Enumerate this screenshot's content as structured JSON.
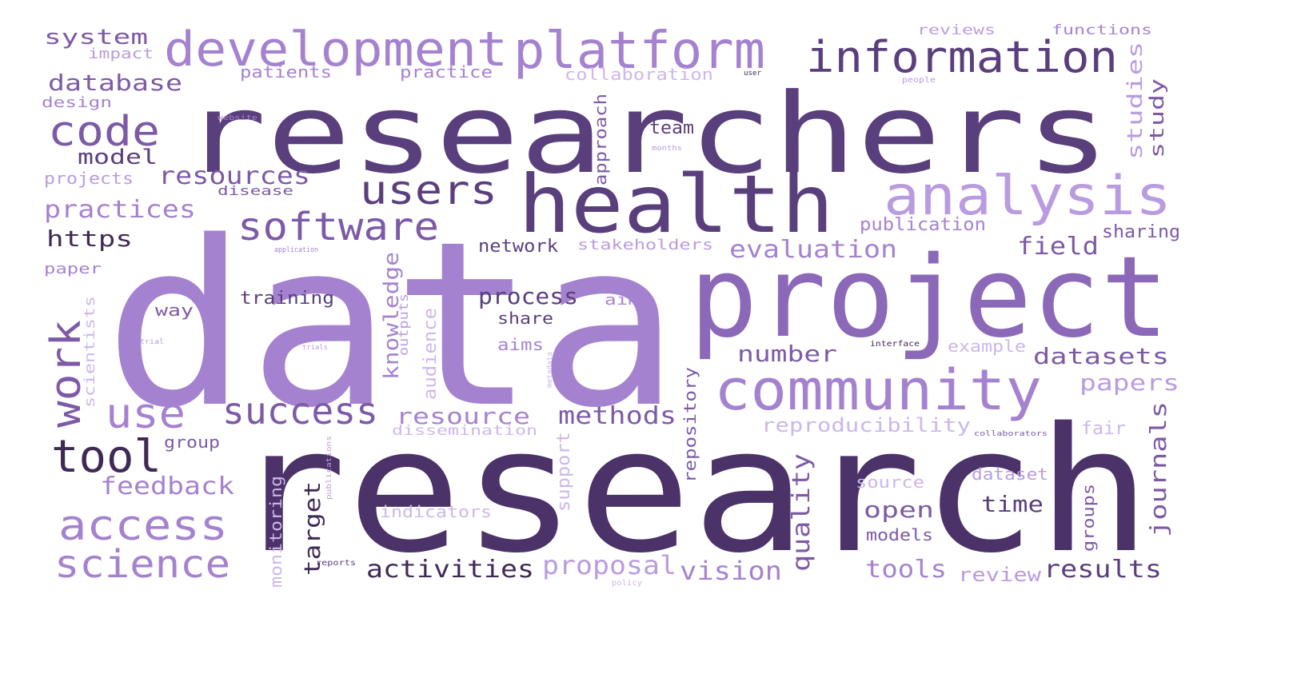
{
  "palette": {
    "darkest": "#3f2a55",
    "dark": "#5a3f7d",
    "medium": "#7c5aa6",
    "light": "#a582d0",
    "lighter": "#b99ce0",
    "lightest": "#cdb7ea"
  },
  "words": [
    {
      "text": "data"
    },
    {
      "text": "researchers"
    },
    {
      "text": "research"
    },
    {
      "text": "project"
    },
    {
      "text": "health"
    },
    {
      "text": "development"
    },
    {
      "text": "platform"
    },
    {
      "text": "information"
    },
    {
      "text": "analysis"
    },
    {
      "text": "community"
    },
    {
      "text": "code"
    },
    {
      "text": "users"
    },
    {
      "text": "software"
    },
    {
      "text": "work"
    },
    {
      "text": "use"
    },
    {
      "text": "success"
    },
    {
      "text": "tool"
    },
    {
      "text": "access"
    },
    {
      "text": "science"
    },
    {
      "text": "system"
    },
    {
      "text": "impact"
    },
    {
      "text": "database"
    },
    {
      "text": "design"
    },
    {
      "text": "model"
    },
    {
      "text": "resources"
    },
    {
      "text": "projects"
    },
    {
      "text": "disease"
    },
    {
      "text": "practices"
    },
    {
      "text": "https"
    },
    {
      "text": "paper"
    },
    {
      "text": "patients"
    },
    {
      "text": "practice"
    },
    {
      "text": "collaboration"
    },
    {
      "text": "reviews"
    },
    {
      "text": "functions"
    },
    {
      "text": "team"
    },
    {
      "text": "approach"
    },
    {
      "text": "studies"
    },
    {
      "text": "study"
    },
    {
      "text": "network"
    },
    {
      "text": "stakeholders"
    },
    {
      "text": "publication"
    },
    {
      "text": "sharing"
    },
    {
      "text": "evaluation"
    },
    {
      "text": "field"
    },
    {
      "text": "training"
    },
    {
      "text": "process"
    },
    {
      "text": "share"
    },
    {
      "text": "aims"
    },
    {
      "text": "aim"
    },
    {
      "text": "way"
    },
    {
      "text": "knowledge"
    },
    {
      "text": "outputs"
    },
    {
      "text": "audience"
    },
    {
      "text": "scientists"
    },
    {
      "text": "number"
    },
    {
      "text": "example"
    },
    {
      "text": "datasets"
    },
    {
      "text": "papers"
    },
    {
      "text": "resource"
    },
    {
      "text": "methods"
    },
    {
      "text": "dissemination"
    },
    {
      "text": "reproducibility"
    },
    {
      "text": "fair"
    },
    {
      "text": "group"
    },
    {
      "text": "feedback"
    },
    {
      "text": "monitoring"
    },
    {
      "text": "target"
    },
    {
      "text": "support"
    },
    {
      "text": "indicators"
    },
    {
      "text": "repository"
    },
    {
      "text": "quality"
    },
    {
      "text": "open"
    },
    {
      "text": "source"
    },
    {
      "text": "dataset"
    },
    {
      "text": "time"
    },
    {
      "text": "journals"
    },
    {
      "text": "groups"
    },
    {
      "text": "models"
    },
    {
      "text": "activities"
    },
    {
      "text": "proposal"
    },
    {
      "text": "vision"
    },
    {
      "text": "tools"
    },
    {
      "text": "review"
    },
    {
      "text": "results"
    },
    {
      "text": "website"
    },
    {
      "text": "people"
    },
    {
      "text": "interface"
    },
    {
      "text": "trials"
    },
    {
      "text": "application"
    },
    {
      "text": "policy"
    },
    {
      "text": "reports"
    },
    {
      "text": "publications"
    },
    {
      "text": "collaborators"
    },
    {
      "text": "metadata"
    },
    {
      "text": "trial"
    },
    {
      "text": "months"
    },
    {
      "text": "user"
    }
  ]
}
